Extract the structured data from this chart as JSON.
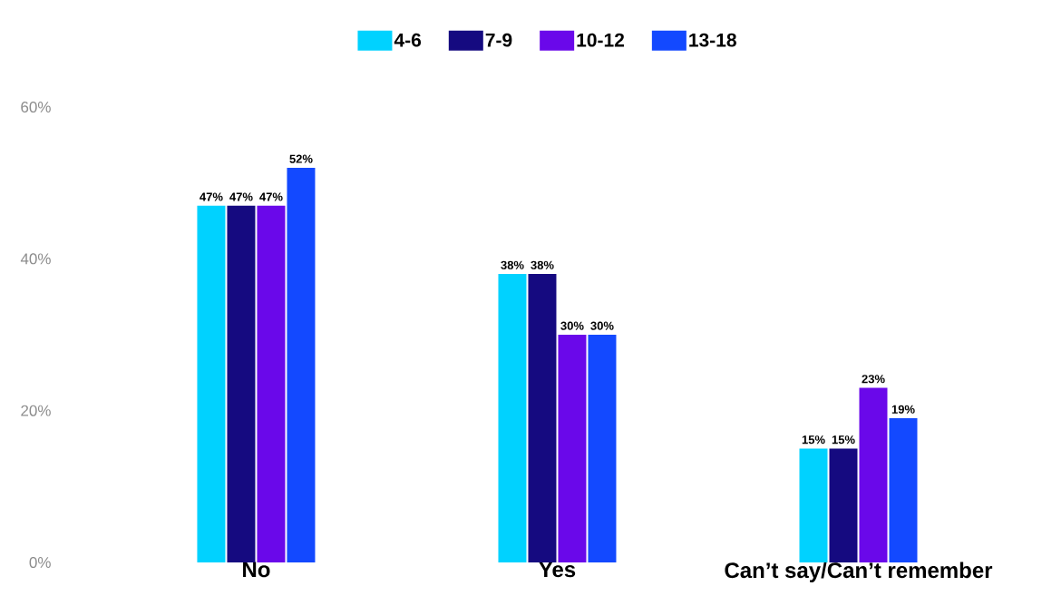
{
  "chart_data": {
    "type": "bar",
    "categories": [
      "No",
      "Yes",
      "Can’t say/Can’t remember"
    ],
    "series": [
      {
        "name": "4-6",
        "color": "#00d2ff",
        "values": [
          47,
          38,
          15
        ],
        "value_labels": [
          "47%",
          "38%",
          "15%"
        ]
      },
      {
        "name": "7-9",
        "color": "#150a80",
        "values": [
          47,
          38,
          15
        ],
        "value_labels": [
          "47%",
          "38%",
          "15%"
        ]
      },
      {
        "name": "10-12",
        "color": "#6a08ea",
        "values": [
          47,
          30,
          23
        ],
        "value_labels": [
          "47%",
          "30%",
          "23%"
        ]
      },
      {
        "name": "13-18",
        "color": "#1349ff",
        "values": [
          52,
          30,
          19
        ],
        "value_labels": [
          "52%",
          "30%",
          "19%"
        ]
      }
    ],
    "ylim": [
      0,
      60
    ],
    "yticks": [
      {
        "value": 0,
        "label": "0%"
      },
      {
        "value": 20,
        "label": "20%"
      },
      {
        "value": 40,
        "label": "40%"
      },
      {
        "value": 60,
        "label": "60%"
      }
    ],
    "legend": "top",
    "grid": false
  }
}
